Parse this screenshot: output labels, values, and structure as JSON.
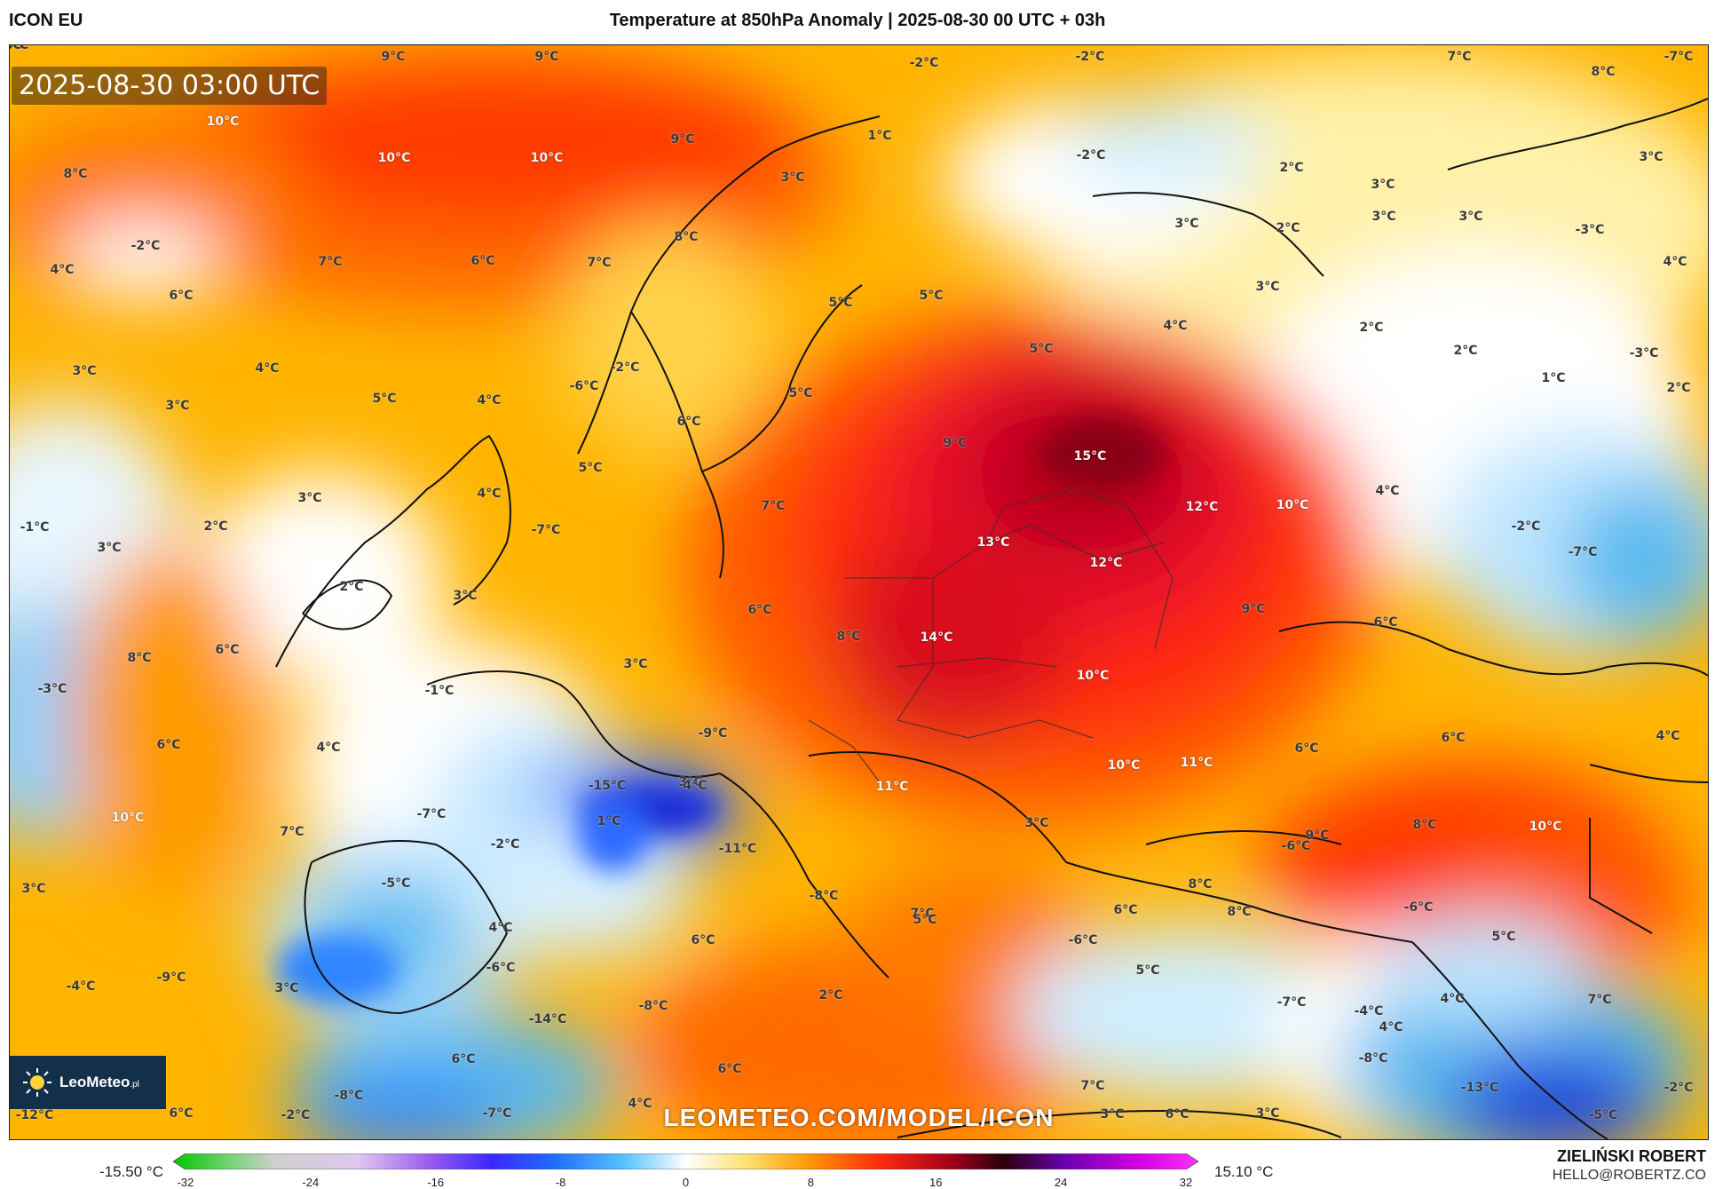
{
  "header": {
    "model": "ICON EU",
    "title": "Temperature at 850hPa Anomaly | 2025-08-30 00 UTC + 03h"
  },
  "map": {
    "timestamp": "2025-08-30 03:00 UTC",
    "watermark": "LEOMETEO.COM/MODEL/ICON",
    "logo_text": "LeoMeteo",
    "logo_suffix": ".pl",
    "labels": [
      {
        "text": "9°C"
      },
      {
        "text": "9°C"
      },
      {
        "text": "-2°C"
      },
      {
        "text": "-2°C"
      },
      {
        "text": "7°C"
      },
      {
        "text": "8°C"
      },
      {
        "text": "-7°C"
      },
      {
        "text": "10°C"
      },
      {
        "text": "1°C"
      },
      {
        "text": "9°C"
      },
      {
        "text": "10°C"
      },
      {
        "text": "10°C"
      },
      {
        "text": "-2°C"
      },
      {
        "text": "2°C"
      },
      {
        "text": "3°C"
      },
      {
        "text": "3°C"
      },
      {
        "text": "8°C"
      },
      {
        "text": "3°C"
      },
      {
        "text": "3°C"
      },
      {
        "text": "8°C"
      },
      {
        "text": "-2°C"
      },
      {
        "text": "7°C"
      },
      {
        "text": "6°C"
      },
      {
        "text": "2°C"
      },
      {
        "text": "3°C"
      },
      {
        "text": "3°C"
      },
      {
        "text": "-3°C"
      },
      {
        "text": "4°C"
      },
      {
        "text": "6°C"
      },
      {
        "text": "7°C"
      },
      {
        "text": "5°C"
      },
      {
        "text": "5°C"
      },
      {
        "text": "3°C"
      },
      {
        "text": "4°C"
      },
      {
        "text": "2°C"
      },
      {
        "text": "4°C"
      },
      {
        "text": "3°C"
      },
      {
        "text": "4°C"
      },
      {
        "text": "-2°C"
      },
      {
        "text": "5°C"
      },
      {
        "text": "2°C"
      },
      {
        "text": "-3°C"
      },
      {
        "text": "1°C"
      },
      {
        "text": "3°C"
      },
      {
        "text": "5°C"
      },
      {
        "text": "4°C"
      },
      {
        "text": "-6°C"
      },
      {
        "text": "5°C"
      },
      {
        "text": "6°C"
      },
      {
        "text": "2°C"
      },
      {
        "text": "5°C"
      },
      {
        "text": "9°C"
      },
      {
        "text": "15°C"
      },
      {
        "text": "4°C"
      },
      {
        "text": "3°C"
      },
      {
        "text": "4°C"
      },
      {
        "text": "7°C"
      },
      {
        "text": "12°C"
      },
      {
        "text": "10°C"
      },
      {
        "text": "-1°C"
      },
      {
        "text": "2°C"
      },
      {
        "text": "3°C"
      },
      {
        "text": "-7°C"
      },
      {
        "text": "-2°C"
      },
      {
        "text": "2°C"
      },
      {
        "text": "-7°C"
      },
      {
        "text": "13°C"
      },
      {
        "text": "12°C"
      },
      {
        "text": "3°C"
      },
      {
        "text": "6°C"
      },
      {
        "text": "9°C"
      },
      {
        "text": "6°C"
      },
      {
        "text": "6°C"
      },
      {
        "text": "8°C"
      },
      {
        "text": "-3°C"
      },
      {
        "text": "8°C"
      },
      {
        "text": "14°C"
      },
      {
        "text": "3°C"
      },
      {
        "text": "-3°C"
      },
      {
        "text": "-1°C"
      },
      {
        "text": "10°C"
      },
      {
        "text": "6°C"
      },
      {
        "text": "4°C"
      },
      {
        "text": "-9°C"
      },
      {
        "text": "6°C"
      },
      {
        "text": "6°C"
      },
      {
        "text": "4°C"
      },
      {
        "text": "10°C"
      },
      {
        "text": "11°C"
      },
      {
        "text": "3°C"
      },
      {
        "text": "4°C"
      },
      {
        "text": "11°C"
      },
      {
        "text": "-15°C"
      },
      {
        "text": "-7°C"
      },
      {
        "text": "1°C"
      },
      {
        "text": "3°C"
      },
      {
        "text": "8°C"
      },
      {
        "text": "10°C"
      },
      {
        "text": "10°C"
      },
      {
        "text": "7°C"
      },
      {
        "text": "-2°C"
      },
      {
        "text": "-11°C"
      },
      {
        "text": "-6°C"
      },
      {
        "text": "9°C"
      },
      {
        "text": "-5°C"
      },
      {
        "text": "8°C"
      },
      {
        "text": "-8°C"
      },
      {
        "text": "7°C"
      },
      {
        "text": "6°C"
      },
      {
        "text": "-6°C"
      },
      {
        "text": "3°C"
      },
      {
        "text": "6°C"
      },
      {
        "text": "5°C"
      },
      {
        "text": "8°C"
      },
      {
        "text": "5°C"
      },
      {
        "text": "4°C"
      },
      {
        "text": "-6°C"
      },
      {
        "text": "-6°C"
      },
      {
        "text": "5°C"
      },
      {
        "text": "-4°C"
      },
      {
        "text": "-9°C"
      },
      {
        "text": "3°C"
      },
      {
        "text": "2°C"
      },
      {
        "text": "4°C"
      },
      {
        "text": "7°C"
      },
      {
        "text": "-14°C"
      },
      {
        "text": "-8°C"
      },
      {
        "text": "-7°C"
      },
      {
        "text": "-4°C"
      },
      {
        "text": "4°C"
      },
      {
        "text": "6°C"
      },
      {
        "text": "6°C"
      },
      {
        "text": "-8°C"
      },
      {
        "text": "-8°C"
      },
      {
        "text": "7°C"
      },
      {
        "text": "-13°C"
      },
      {
        "text": "-2°C"
      },
      {
        "text": "-12°C"
      },
      {
        "text": "6°C"
      },
      {
        "text": "-2°C"
      },
      {
        "text": "-7°C"
      },
      {
        "text": "4°C"
      },
      {
        "text": "3°C"
      },
      {
        "text": "6°C"
      },
      {
        "text": "3°C"
      },
      {
        "text": "-5°C"
      },
      {
        "text": "2°C"
      },
      {
        "text": "-13°C"
      }
    ]
  },
  "colorbar": {
    "min_label": "-15.50 °C",
    "max_label": "15.10 °C",
    "range": [
      -32,
      32
    ],
    "ticks": [
      "-32",
      "-24",
      "-16",
      "-8",
      "0",
      "8",
      "16",
      "24",
      "32"
    ]
  },
  "author": {
    "name": "ZIELIŃSKI ROBERT",
    "email": "HELLO@ROBERTZ.CO"
  }
}
